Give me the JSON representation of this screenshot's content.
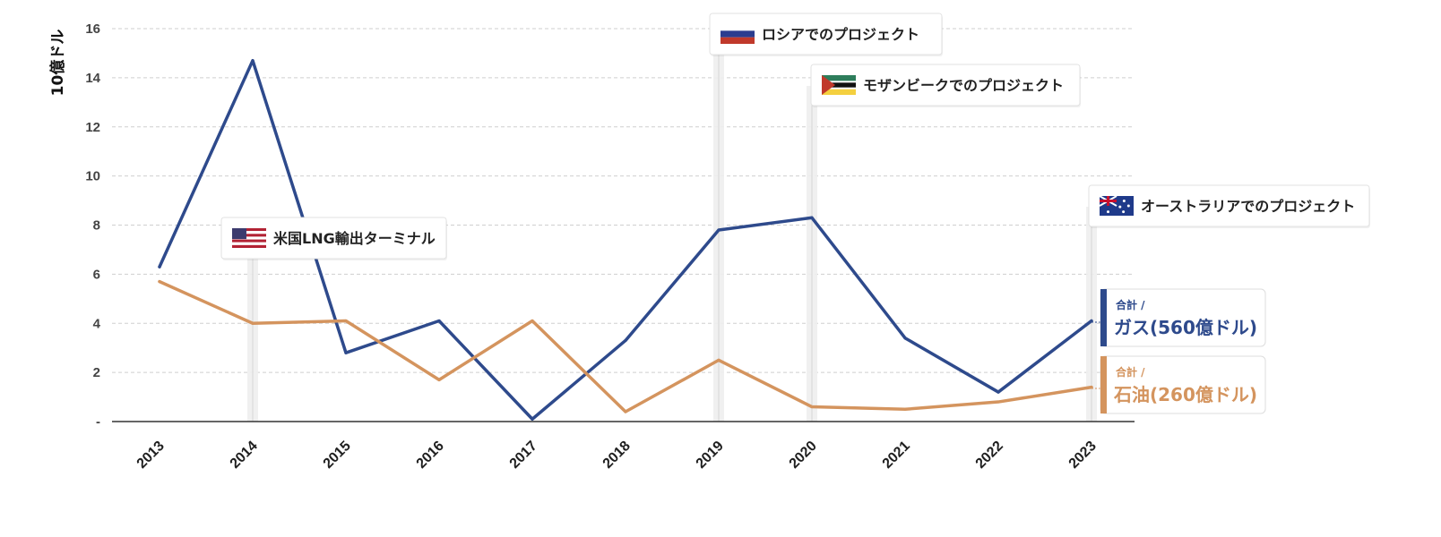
{
  "chart_data": {
    "type": "line",
    "ylabel": "10億ドル",
    "xlabel": "",
    "title": "",
    "categories": [
      "2013",
      "2014",
      "2015",
      "2016",
      "2017",
      "2018",
      "2019",
      "2020",
      "2021",
      "2022",
      "2023"
    ],
    "ylim": [
      0,
      16
    ],
    "yticks": [
      0,
      2,
      4,
      6,
      8,
      10,
      12,
      14,
      16
    ],
    "ytick_labels": [
      "-",
      "2",
      "4",
      "6",
      "8",
      "10",
      "12",
      "14",
      "16"
    ],
    "grid": true,
    "legend_placement": "right",
    "series": [
      {
        "key": "gas",
        "color": "#2e4a8c",
        "legend_prefix": "合計 /",
        "legend_label": "ガス(560億ドル)",
        "values": [
          6.3,
          14.7,
          2.8,
          4.1,
          0.1,
          3.3,
          7.8,
          8.3,
          3.4,
          1.2,
          4.1
        ]
      },
      {
        "key": "oil",
        "color": "#d4945e",
        "legend_prefix": "合計 /",
        "legend_label": "石油(260億ドル)",
        "values": [
          5.7,
          4.0,
          4.1,
          1.7,
          4.1,
          0.4,
          2.5,
          0.6,
          0.5,
          0.8,
          1.4
        ]
      }
    ],
    "annotations": [
      {
        "key": "us",
        "x": "2014",
        "label": "米国LNG輸出ターミナル",
        "flag": "usa-flag-icon"
      },
      {
        "key": "russia",
        "x": "2019",
        "label": "ロシアでのプロジェクト",
        "flag": "russia-flag-icon"
      },
      {
        "key": "mozambique",
        "x": "2020",
        "label": "モザンビークでのプロジェクト",
        "flag": "mozambique-flag-icon"
      },
      {
        "key": "australia",
        "x": "2023",
        "label": "オーストラリアでのプロジェクト",
        "flag": "australia-flag-icon"
      }
    ]
  }
}
